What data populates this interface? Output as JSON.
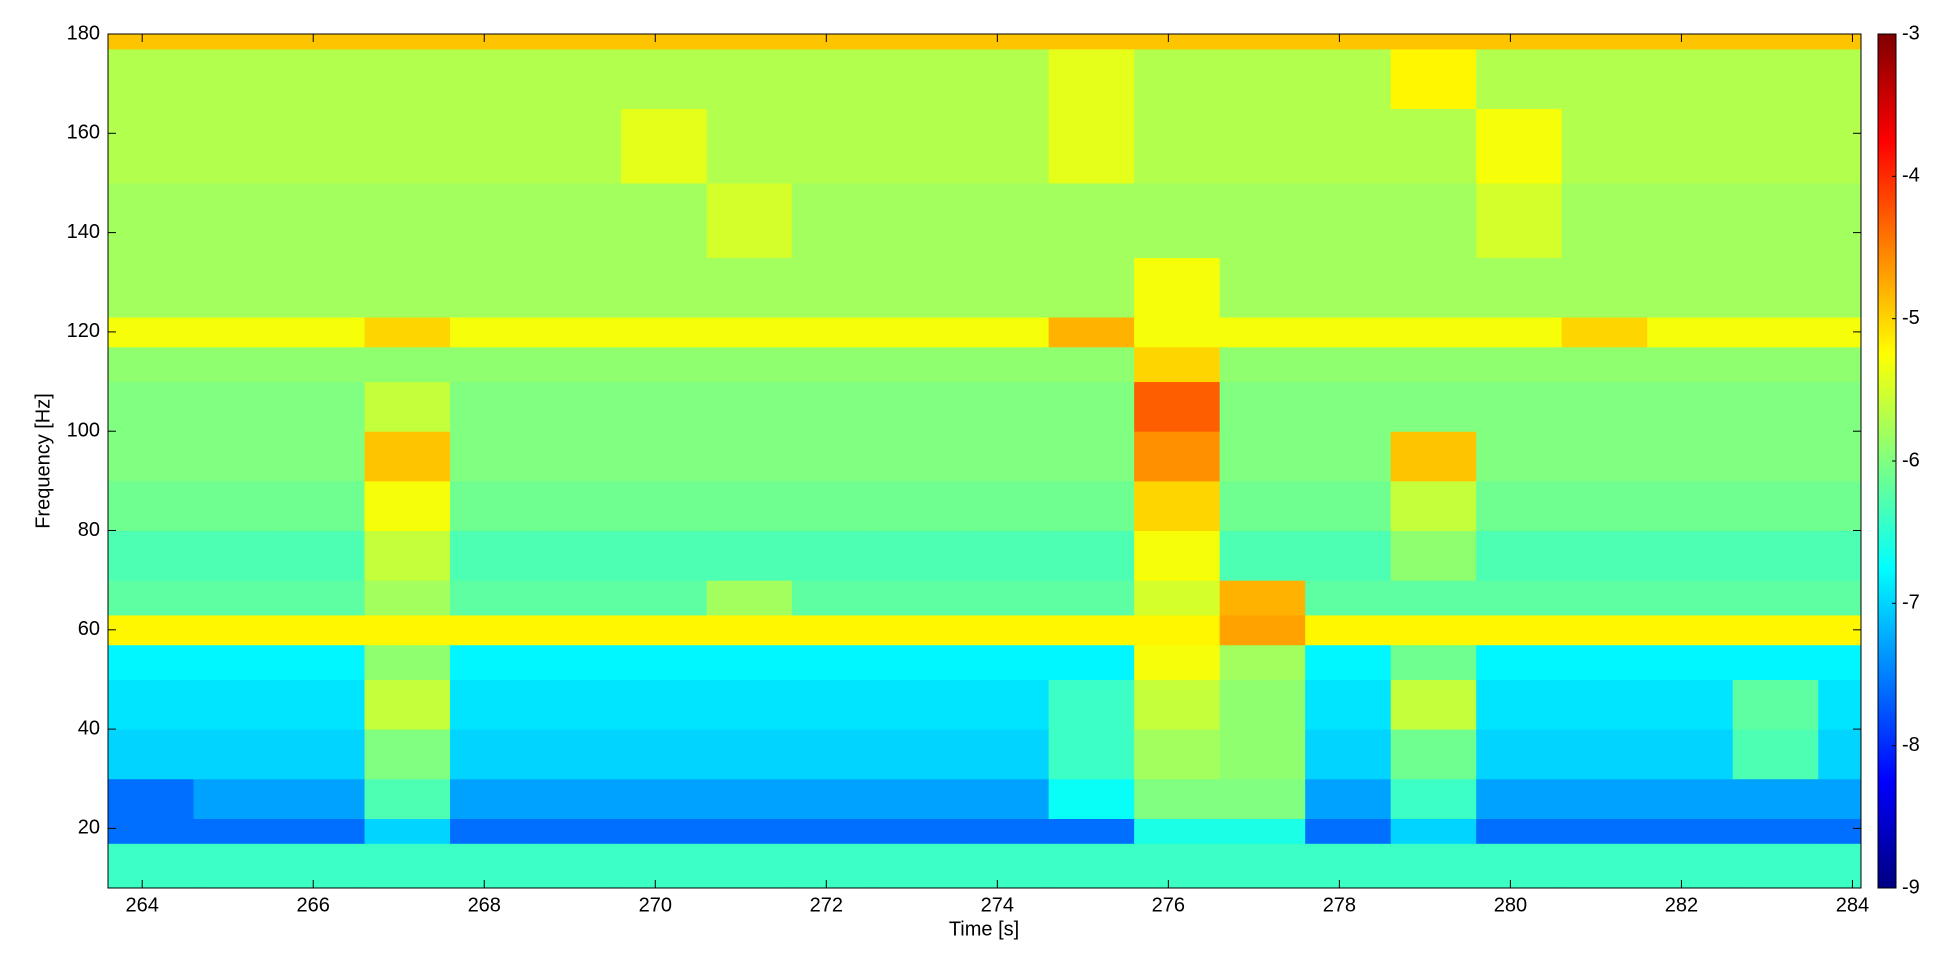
{
  "chart_data": {
    "type": "heatmap",
    "xlabel": "Time [s]",
    "ylabel": "Frequency [Hz]",
    "x": [
      263.6,
      264.6,
      265.6,
      266.6,
      267.6,
      268.6,
      269.6,
      270.6,
      271.6,
      272.6,
      273.6,
      274.6,
      275.6,
      276.6,
      277.6,
      278.6,
      279.6,
      280.6,
      281.6,
      282.6,
      283.6,
      284.1
    ],
    "y": [
      8,
      17,
      22,
      30,
      40,
      50,
      57,
      63,
      70,
      80,
      90,
      100,
      110,
      117,
      123,
      135,
      150,
      165,
      177,
      180
    ],
    "values": [
      [
        -6.4,
        -6.4,
        -6.4,
        -6.4,
        -6.4,
        -6.4,
        -6.4,
        -6.4,
        -6.4,
        -6.4,
        -6.4,
        -6.4,
        -6.4,
        -6.4,
        -6.4,
        -6.4,
        -6.4,
        -6.4,
        -6.4,
        -6.4,
        -6.4
      ],
      [
        -7.6,
        -7.6,
        -7.6,
        -7.0,
        -7.6,
        -7.6,
        -7.6,
        -7.6,
        -7.6,
        -7.6,
        -7.6,
        -7.6,
        -6.6,
        -6.6,
        -7.6,
        -7.0,
        -7.6,
        -7.6,
        -7.6,
        -7.6,
        -7.6
      ],
      [
        -7.6,
        -7.3,
        -7.3,
        -6.3,
        -7.3,
        -7.3,
        -7.3,
        -7.3,
        -7.3,
        -7.3,
        -7.3,
        -6.7,
        -6.0,
        -6.0,
        -7.3,
        -6.4,
        -7.3,
        -7.3,
        -7.3,
        -7.3,
        -7.3
      ],
      [
        -7.0,
        -7.0,
        -7.0,
        -6.0,
        -7.0,
        -7.0,
        -7.0,
        -7.0,
        -7.0,
        -7.0,
        -7.0,
        -6.4,
        -5.8,
        -5.9,
        -7.0,
        -6.1,
        -7.0,
        -7.0,
        -7.0,
        -6.3,
        -7.0
      ],
      [
        -6.9,
        -6.9,
        -6.9,
        -5.6,
        -6.9,
        -6.9,
        -6.9,
        -6.9,
        -6.9,
        -6.9,
        -6.9,
        -6.4,
        -5.6,
        -5.9,
        -6.9,
        -5.6,
        -6.9,
        -6.9,
        -6.9,
        -6.2,
        -6.9
      ],
      [
        -6.8,
        -6.8,
        -6.8,
        -5.9,
        -6.8,
        -6.8,
        -6.8,
        -6.8,
        -6.8,
        -6.8,
        -6.8,
        -6.8,
        -5.3,
        -5.8,
        -6.8,
        -6.1,
        -6.8,
        -6.8,
        -6.8,
        -6.8,
        -6.8
      ],
      [
        -5.2,
        -5.2,
        -5.2,
        -5.2,
        -5.2,
        -5.2,
        -5.2,
        -5.2,
        -5.2,
        -5.2,
        -5.2,
        -5.2,
        -5.2,
        -4.7,
        -5.2,
        -5.2,
        -5.2,
        -5.2,
        -5.2,
        -5.2,
        -5.2
      ],
      [
        -6.2,
        -6.2,
        -6.2,
        -5.8,
        -6.2,
        -6.2,
        -6.2,
        -5.8,
        -6.2,
        -6.2,
        -6.2,
        -6.2,
        -5.5,
        -4.8,
        -6.2,
        -6.2,
        -6.2,
        -6.2,
        -6.2,
        -6.2,
        -6.2
      ],
      [
        -6.3,
        -6.3,
        -6.3,
        -5.6,
        -6.3,
        -6.3,
        -6.3,
        -6.3,
        -6.3,
        -6.3,
        -6.3,
        -6.3,
        -5.3,
        -6.3,
        -6.3,
        -5.9,
        -6.3,
        -6.3,
        -6.3,
        -6.3,
        -6.3
      ],
      [
        -6.1,
        -6.1,
        -6.1,
        -5.3,
        -6.1,
        -6.1,
        -6.1,
        -6.1,
        -6.1,
        -6.1,
        -6.1,
        -6.1,
        -5.0,
        -6.1,
        -6.1,
        -5.6,
        -6.1,
        -6.1,
        -6.1,
        -6.1,
        -6.1
      ],
      [
        -6.0,
        -6.0,
        -6.0,
        -4.9,
        -6.0,
        -6.0,
        -6.0,
        -6.0,
        -6.0,
        -6.0,
        -6.0,
        -6.0,
        -4.6,
        -6.0,
        -6.0,
        -4.9,
        -6.0,
        -6.0,
        -6.0,
        -6.0,
        -6.0
      ],
      [
        -6.0,
        -6.0,
        -6.0,
        -5.6,
        -6.0,
        -6.0,
        -6.0,
        -6.0,
        -6.0,
        -6.0,
        -6.0,
        -6.0,
        -4.3,
        -6.0,
        -6.0,
        -6.0,
        -6.0,
        -6.0,
        -6.0,
        -6.0,
        -6.0
      ],
      [
        -5.9,
        -5.9,
        -5.9,
        -5.9,
        -5.9,
        -5.9,
        -5.9,
        -5.9,
        -5.9,
        -5.9,
        -5.9,
        -5.9,
        -5.0,
        -5.9,
        -5.9,
        -5.9,
        -5.9,
        -5.9,
        -5.9,
        -5.9,
        -5.9
      ],
      [
        -5.3,
        -5.3,
        -5.3,
        -5.0,
        -5.3,
        -5.3,
        -5.3,
        -5.3,
        -5.3,
        -5.3,
        -5.3,
        -4.8,
        -5.3,
        -5.3,
        -5.3,
        -5.3,
        -5.3,
        -5.0,
        -5.3,
        -5.3,
        -5.3
      ],
      [
        -5.8,
        -5.8,
        -5.8,
        -5.8,
        -5.8,
        -5.8,
        -5.8,
        -5.8,
        -5.8,
        -5.8,
        -5.8,
        -5.8,
        -5.3,
        -5.8,
        -5.8,
        -5.8,
        -5.8,
        -5.8,
        -5.8,
        -5.8,
        -5.8
      ],
      [
        -5.8,
        -5.8,
        -5.8,
        -5.8,
        -5.8,
        -5.8,
        -5.8,
        -5.5,
        -5.8,
        -5.8,
        -5.8,
        -5.8,
        -5.8,
        -5.8,
        -5.8,
        -5.8,
        -5.5,
        -5.8,
        -5.8,
        -5.8,
        -5.8
      ],
      [
        -5.7,
        -5.7,
        -5.7,
        -5.7,
        -5.7,
        -5.7,
        -5.4,
        -5.7,
        -5.7,
        -5.7,
        -5.7,
        -5.4,
        -5.7,
        -5.7,
        -5.7,
        -5.7,
        -5.3,
        -5.7,
        -5.7,
        -5.7,
        -5.7
      ],
      [
        -5.7,
        -5.7,
        -5.7,
        -5.7,
        -5.7,
        -5.7,
        -5.7,
        -5.7,
        -5.7,
        -5.7,
        -5.7,
        -5.4,
        -5.7,
        -5.7,
        -5.7,
        -5.2,
        -5.7,
        -5.7,
        -5.7,
        -5.7,
        -5.7
      ],
      [
        -4.9,
        -4.9,
        -4.9,
        -4.9,
        -4.9,
        -4.9,
        -4.9,
        -4.9,
        -4.9,
        -4.9,
        -4.9,
        -4.9,
        -4.9,
        -4.9,
        -4.9,
        -4.9,
        -4.9,
        -4.9,
        -4.9,
        -4.9,
        -4.9
      ]
    ],
    "xlim": [
      263.6,
      284.1
    ],
    "xticks": [
      264,
      266,
      268,
      270,
      272,
      274,
      276,
      278,
      280,
      282,
      284
    ],
    "ylim": [
      8,
      180
    ],
    "yticks": [
      20,
      40,
      60,
      80,
      100,
      120,
      140,
      160,
      180
    ],
    "colormap": "jet",
    "clim": [
      -9,
      -3
    ],
    "cticks": [
      -9,
      -8,
      -7,
      -6,
      -5,
      -4,
      -3
    ]
  }
}
